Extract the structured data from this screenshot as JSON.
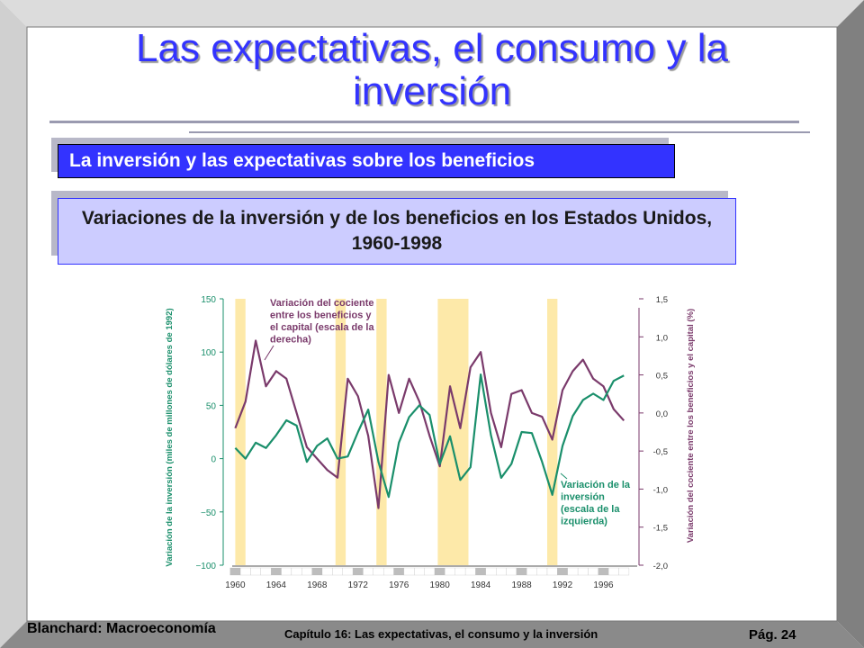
{
  "slide": {
    "title": "Las expectativas, el consumo y la inversión",
    "subtitle_box": "La inversión y las expectativas sobre los beneficios",
    "chart_title": "Variaciones de la inversión y de los beneficios en los Estados Unidos, 1960-1998"
  },
  "footer": {
    "left": "Blanchard: Macroeconomía",
    "center": "Capítulo 16: Las expectativas, el consumo y la inversión",
    "right": "Pág. 24"
  },
  "colors": {
    "title": "#3333ff",
    "box_dark": "#3333ff",
    "box_light": "#ccccff",
    "investment": "#1a8f6b",
    "profit": "#7a3a6b",
    "recession": "#fde9a9"
  },
  "chart_data": {
    "type": "line",
    "xlabel": "",
    "ylabel_left": "Variación de la inversión (miles de millones de dólares de 1992)",
    "ylabel_right": "Variación del cociente entre los beneficios y el capital (%)",
    "ylim_left": [
      -100,
      150
    ],
    "ylim_right": [
      -2.0,
      1.5
    ],
    "yticks_left": [
      "150",
      "100",
      "50",
      "0",
      "−50",
      "−100"
    ],
    "yticks_right": [
      "1,5",
      "1,0",
      "0,5",
      "0,0",
      "-0,5",
      "-1,0",
      "-1,5",
      "-2,0"
    ],
    "xticks": [
      "1960",
      "1964",
      "1968",
      "1972",
      "1976",
      "1980",
      "1984",
      "1988",
      "1992",
      "1996"
    ],
    "recession_bands": [
      [
        1960.0,
        1961.0
      ],
      [
        1969.8,
        1970.8
      ],
      [
        1973.8,
        1974.8
      ],
      [
        1979.8,
        1982.8
      ],
      [
        1990.5,
        1991.5
      ]
    ],
    "series": [
      {
        "name": "Variación de la inversión (escala de la izquierda)",
        "axis": "left",
        "x": [
          1960,
          1961,
          1962,
          1963,
          1964,
          1965,
          1966,
          1967,
          1968,
          1969,
          1970,
          1971,
          1972,
          1973,
          1974,
          1975,
          1976,
          1977,
          1978,
          1979,
          1980,
          1981,
          1982,
          1983,
          1984,
          1985,
          1986,
          1987,
          1988,
          1989,
          1990,
          1991,
          1992,
          1993,
          1994,
          1995,
          1996,
          1997,
          1998
        ],
        "values": [
          10,
          0,
          15,
          10,
          22,
          36,
          31,
          -3,
          12,
          19,
          0,
          2,
          25,
          46,
          -3,
          -36,
          15,
          39,
          50,
          41,
          -5,
          21,
          -20,
          -8,
          79,
          22,
          -18,
          -5,
          25,
          24,
          -3,
          -34,
          12,
          40,
          55,
          61,
          55,
          73,
          78
        ]
      },
      {
        "name": "Variación del cociente entre los beneficios y el capital (escala de la derecha)",
        "axis": "right",
        "x": [
          1960,
          1961,
          1962,
          1963,
          1964,
          1965,
          1966,
          1967,
          1968,
          1969,
          1970,
          1971,
          1972,
          1973,
          1974,
          1975,
          1976,
          1977,
          1978,
          1979,
          1980,
          1981,
          1982,
          1983,
          1984,
          1985,
          1986,
          1987,
          1988,
          1989,
          1990,
          1991,
          1992,
          1993,
          1994,
          1995,
          1996,
          1997,
          1998
        ],
        "values": [
          -0.2,
          0.15,
          0.95,
          0.35,
          0.55,
          0.45,
          0.0,
          -0.45,
          -0.6,
          -0.75,
          -0.85,
          0.45,
          0.22,
          -0.3,
          -1.25,
          0.5,
          0.0,
          0.45,
          0.15,
          -0.3,
          -0.7,
          0.35,
          -0.2,
          0.6,
          0.8,
          0.0,
          -0.45,
          0.25,
          0.3,
          0.0,
          -0.05,
          -0.35,
          0.3,
          0.55,
          0.7,
          0.45,
          0.35,
          0.05,
          -0.1
        ]
      }
    ],
    "annotations": [
      {
        "text": [
          "Variación del cociente",
          "entre los beneficios y",
          "el capital (escala de la",
          "derecha)"
        ]
      },
      {
        "text": [
          "Variación de la",
          "inversión",
          "(escala de la",
          "izquierda)"
        ]
      }
    ]
  }
}
